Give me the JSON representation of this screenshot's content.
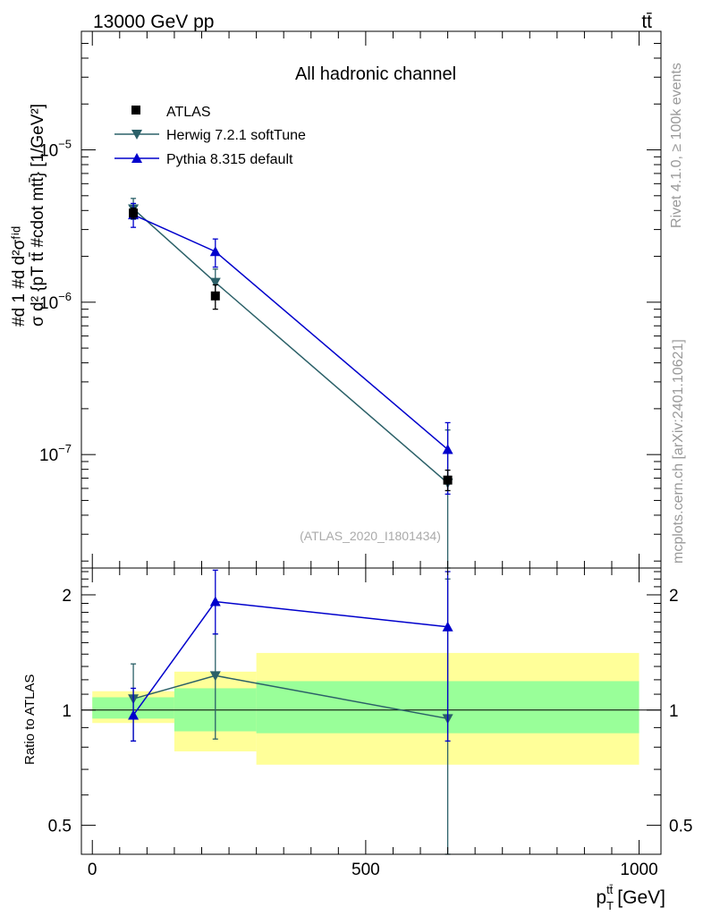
{
  "header": {
    "left_label": "13000 GeV pp",
    "right_label": "tt̄"
  },
  "side_labels": {
    "rivet": "Rivet 4.1.0, ≥ 100k events",
    "source": "mcplots.cern.ch [arXiv:2401.10621]"
  },
  "chart_data": {
    "type": "line",
    "title": "All hadronic channel",
    "analysis_label": "(ATLAS_2020_I1801434)",
    "x": [
      75,
      225,
      650
    ],
    "x_edges": [
      0,
      150,
      300,
      1000
    ],
    "xlabel": "p_T^{tt̄} [GeV]",
    "xlabel_main": "p",
    "xlabel_sub": "T",
    "xlabel_sup": "tt̄",
    "xlabel_unit": "[GeV]",
    "xlim": [
      -20,
      1040
    ],
    "xticks": [
      0,
      500,
      1000
    ],
    "xtick_labels": [
      "0",
      "500",
      "1000"
    ],
    "main": {
      "yscale": "log",
      "ylim": [
        1.8e-08,
        6e-05
      ],
      "ylabel": "#d\\frac{1}{\\sigma}#d\\frac{d^2\\sigma^{fid}}{d^2 {p_T^{tt̄} #cdot m^{tt̄}} [1/GeV^2]",
      "ylabel_lines": [
        "#d 1 #d d²σᶠⁱᵈ",
        "σ d² {pT tt̄ #cdot mtt̄} [1/GeV²]"
      ],
      "yticks": [
        1e-07,
        1e-06,
        1e-05
      ],
      "ytick_labels": [
        {
          "base": "10",
          "exp": "−7"
        },
        {
          "base": "10",
          "exp": "−6"
        },
        {
          "base": "10",
          "exp": "−5"
        }
      ],
      "series": [
        {
          "name": "ATLAS",
          "marker": "square",
          "color": "#000000",
          "values": [
            3.85e-06,
            1.1e-06,
            6.8e-08
          ],
          "err_lo": [
            3.55e-06,
            9e-07,
            5.8e-08
          ],
          "err_hi": [
            4.15e-06,
            1.3e-06,
            7.9e-08
          ]
        },
        {
          "name": "Herwig 7.2.1 softTune",
          "marker": "triangle-down",
          "color": "#2b6068",
          "values": [
            4.1e-06,
            1.35e-06,
            6.5e-08
          ],
          "err_lo": [
            3.5e-06,
            1.05e-06,
            1e-09
          ],
          "err_hi": [
            4.8e-06,
            1.65e-06,
            1.45e-07
          ]
        },
        {
          "name": "Pythia 8.315 default",
          "marker": "triangle-up",
          "color": "#0000cc",
          "values": [
            3.75e-06,
            2.15e-06,
            1.08e-07
          ],
          "err_lo": [
            3.1e-06,
            1.7e-06,
            5.5e-08
          ],
          "err_hi": [
            4.45e-06,
            2.6e-06,
            1.62e-07
          ]
        }
      ]
    },
    "ratio": {
      "ylabel": "Ratio to ATLAS",
      "yscale": "log",
      "ylim": [
        0.42,
        2.35
      ],
      "yticks": [
        0.5,
        1,
        2
      ],
      "ytick_labels": [
        "0.5",
        "1",
        "2"
      ],
      "ref_bands": {
        "inner_color": "#99ff99",
        "outer_color": "#ffff99",
        "inner": [
          [
            0.95,
            1.08
          ],
          [
            0.88,
            1.14
          ],
          [
            0.87,
            1.19
          ]
        ],
        "outer": [
          [
            0.925,
            1.12
          ],
          [
            0.78,
            1.26
          ],
          [
            0.72,
            1.41
          ]
        ]
      },
      "series": [
        {
          "name": "Herwig 7.2.1 softTune",
          "marker": "triangle-down",
          "color": "#2b6068",
          "values": [
            1.07,
            1.23,
            0.95
          ],
          "err_lo": [
            0.83,
            0.84,
            0.01
          ],
          "err_hi": [
            1.32,
            1.58,
            2.2
          ]
        },
        {
          "name": "Pythia 8.315 default",
          "marker": "triangle-up",
          "color": "#0000cc",
          "values": [
            0.97,
            1.92,
            1.65
          ],
          "err_lo": [
            0.83,
            1.58,
            0.83
          ],
          "err_hi": [
            1.14,
            2.32,
            2.3
          ]
        }
      ]
    }
  }
}
